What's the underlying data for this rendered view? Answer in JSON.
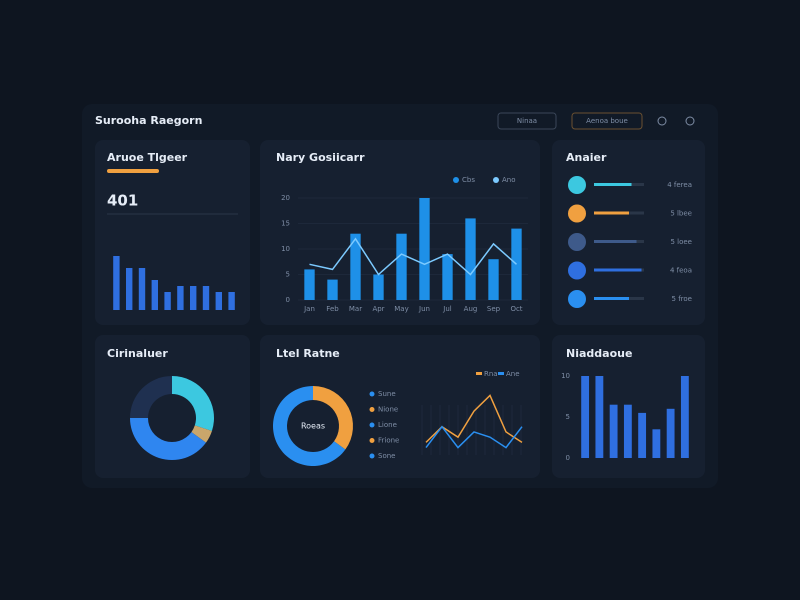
{
  "header": {
    "title": "Surooha Raegorn",
    "buttons": [
      "Ninaa",
      "Aenoa boue"
    ]
  },
  "panels": [
    {
      "title": "Aruoe Tlgeer",
      "metric": "401",
      "chart_data": {
        "type": "bar",
        "values": [
          9,
          7,
          7,
          5,
          3,
          4,
          4,
          4,
          3,
          3
        ],
        "color": "#2f6fe0",
        "ylim": [
          0,
          10
        ]
      }
    },
    {
      "title": "Nary Gosiicarr",
      "chart_data": {
        "type": "bar-line",
        "categories": [
          "Jan",
          "Feb",
          "Mar",
          "Apr",
          "May",
          "Jun",
          "Jul",
          "Aug",
          "Sep",
          "Oct"
        ],
        "series": [
          {
            "name": "Cbs",
            "color": "#1e90e8",
            "values": [
              6,
              4,
              13,
              5,
              13,
              20,
              9,
              16,
              8,
              14
            ]
          },
          {
            "name": "Ano",
            "color": "#7ccaff",
            "values": [
              7,
              6,
              12,
              5,
              9,
              7,
              9,
              5,
              11,
              7
            ]
          }
        ],
        "ylim": [
          0,
          20
        ],
        "yticks": [
          0,
          5,
          10,
          15,
          20
        ],
        "grid": true
      }
    },
    {
      "title": "Anaier",
      "items": [
        {
          "label": "4 ferea",
          "value": 75,
          "color": "#3cc8e0"
        },
        {
          "label": "5 lbee",
          "value": 70,
          "color": "#f0a040"
        },
        {
          "label": "5 loee",
          "value": 85,
          "color": "#3e5a8a"
        },
        {
          "label": "4 feoa",
          "value": 95,
          "color": "#2f6fe0"
        },
        {
          "label": "5 froe",
          "value": 70,
          "color": "#2a8ff0"
        }
      ]
    },
    {
      "title": "Cirinaluer",
      "chart_data": {
        "type": "pie",
        "values": [
          30,
          5,
          40,
          25
        ],
        "colors": [
          "#3cc8e0",
          "#c9a66b",
          "#2f86f0",
          "#1f3050"
        ]
      }
    },
    {
      "title": "Ltel Ratne",
      "center_label": "Roeas",
      "legend": [
        "Sune",
        "Nione",
        "Lione",
        "Frione",
        "Sone"
      ],
      "chart_data": [
        {
          "type": "pie",
          "values": [
            35,
            65
          ],
          "colors": [
            "#f0a040",
            "#2a8ff0"
          ]
        },
        {
          "type": "line",
          "series": [
            {
              "name": "Rna",
              "color": "#f0a040",
              "values": [
                3,
                6,
                4,
                9,
                12,
                5,
                3
              ]
            },
            {
              "name": "Ane",
              "color": "#2a8ff0",
              "values": [
                2,
                6,
                2,
                5,
                4,
                2,
                6
              ]
            }
          ],
          "ylim": [
            0,
            14
          ]
        }
      ]
    },
    {
      "title": "Niaddaoue",
      "chart_data": {
        "type": "bar",
        "values": [
          10,
          10,
          6.5,
          6.5,
          5.5,
          3.5,
          6,
          10
        ],
        "color": "#2f6fe0",
        "ylim": [
          0,
          10
        ],
        "yticks": [
          0,
          5,
          10
        ]
      }
    }
  ]
}
